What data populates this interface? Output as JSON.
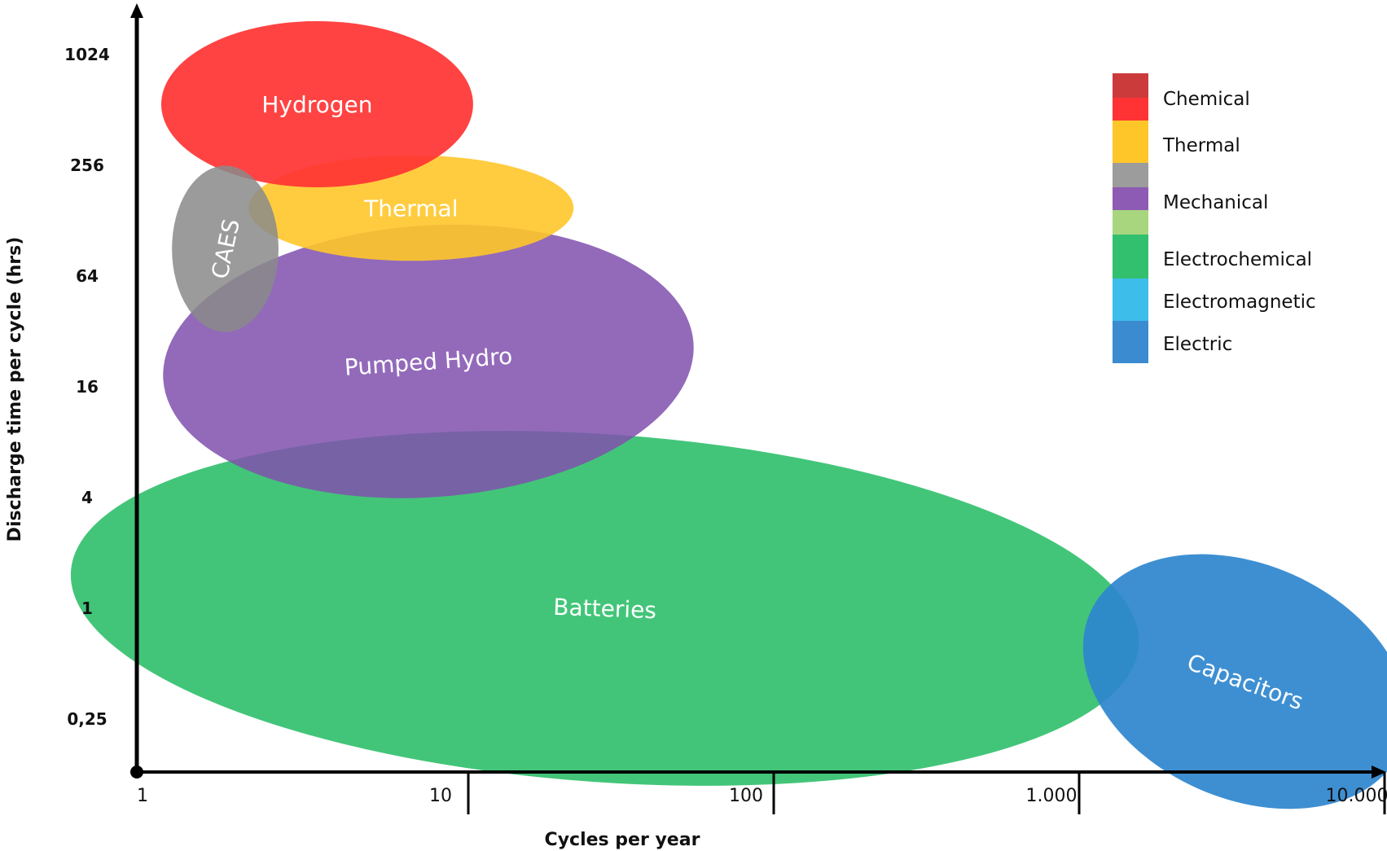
{
  "chart_data": {
    "type": "bubble-region",
    "xlabel": "Cycles per year",
    "ylabel": "Discharge time per cycle (hrs)",
    "x_scale": "log",
    "y_scale": "log2",
    "x_ticks": [
      {
        "value": 1,
        "label": "1"
      },
      {
        "value": 10,
        "label": "10"
      },
      {
        "value": 100,
        "label": "100"
      },
      {
        "value": 1000,
        "label": "1.000"
      },
      {
        "value": 10000,
        "label": "10.000"
      }
    ],
    "y_ticks": [
      {
        "value": 0.25,
        "label": "0,25"
      },
      {
        "value": 1,
        "label": "1"
      },
      {
        "value": 4,
        "label": "4"
      },
      {
        "value": 16,
        "label": "16"
      },
      {
        "value": 64,
        "label": "64"
      },
      {
        "value": 256,
        "label": "256"
      },
      {
        "value": 1024,
        "label": "1024"
      }
    ],
    "regions": [
      {
        "label": "Batteries",
        "category": "Electrochemical",
        "color": "#33C06E",
        "opacity": 0.92,
        "cx": 28,
        "cy": 1,
        "x_range": [
          1,
          3200
        ],
        "y_range": [
          0.09,
          7
        ],
        "rotation": 4,
        "text_rotation": 2
      },
      {
        "label": "Pumped Hydro",
        "category": "Mechanical",
        "color": "#8050AE",
        "opacity": 0.85,
        "cx": 7.4,
        "cy": 22,
        "x_range": [
          1,
          55
        ],
        "y_range": [
          4,
          120
        ],
        "rotation": -4,
        "text_rotation": -4
      },
      {
        "label": "Thermal",
        "category": "Thermal",
        "color": "#FFC62A",
        "opacity": 0.9,
        "cx": 6.5,
        "cy": 150,
        "x_range": [
          1.9,
          22
        ],
        "y_range": [
          80,
          300
        ],
        "rotation": 0,
        "text_rotation": 0
      },
      {
        "label": "Hydrogen",
        "category": "Chemical",
        "color": "#FF3333",
        "opacity": 0.92,
        "cx": 3.2,
        "cy": 550,
        "x_range": [
          1,
          10.5
        ],
        "y_range": [
          200,
          1600
        ],
        "rotation": 0,
        "text_rotation": 0
      },
      {
        "label": "CAES",
        "category": "Mechanical",
        "color": "#8A8A8A",
        "opacity": 0.85,
        "cx": 1.6,
        "cy": 90,
        "x_range": [
          1.03,
          2.3
        ],
        "y_range": [
          30,
          240
        ],
        "rotation": 0,
        "text_rotation": -78
      },
      {
        "label": "Capacitors",
        "category": "Electric",
        "color": "#2E86CE",
        "opacity": 0.92,
        "cx": 3500,
        "cy": 0.4,
        "x_range": [
          850,
          11000
        ],
        "y_range": [
          0.08,
          1.5
        ],
        "rotation": 24,
        "text_rotation": 20
      }
    ],
    "legend": {
      "placement": "top-right",
      "items": [
        {
          "label": "Chemical",
          "colors": [
            "#CC3B3B",
            "#FF3333"
          ]
        },
        {
          "label": "Thermal",
          "colors": [
            "#FFC62A"
          ]
        },
        {
          "label": "Mechanical",
          "colors": [
            "#9C9C9C",
            "#8E5BB4"
          ]
        },
        {
          "label": "Electrochemical",
          "colors": [
            "#A8D67E",
            "#33C06E"
          ]
        },
        {
          "label": "Electromagnetic",
          "colors": [
            "#3DBDEA"
          ]
        },
        {
          "label": "Electric",
          "colors": [
            "#3A8BD0"
          ]
        }
      ]
    }
  }
}
